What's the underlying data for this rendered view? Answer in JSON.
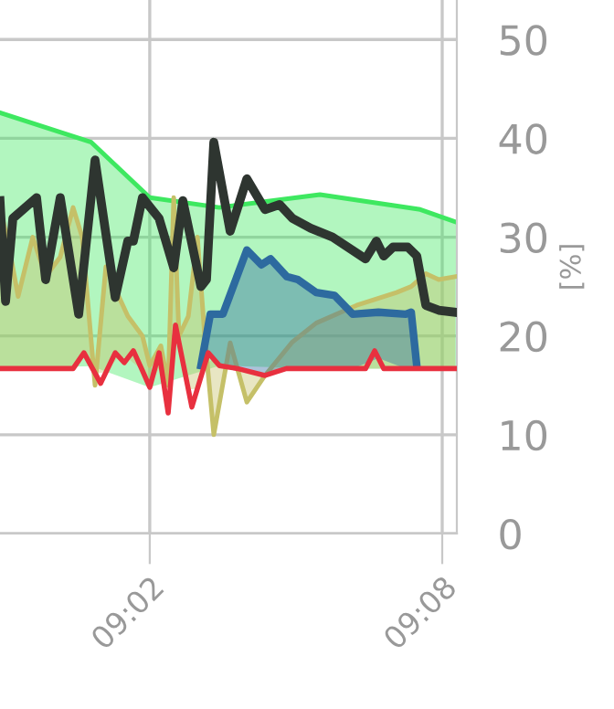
{
  "chart_data": {
    "type": "line",
    "ylabel": "[%]",
    "xlim": [
      8.9821,
      9.1383
    ],
    "xticks": [
      {
        "value": 9.0333,
        "label": "09:02"
      },
      {
        "value": 9.1333,
        "label": "09:08"
      }
    ],
    "ylim": [
      0,
      54
    ],
    "yticks": [
      0,
      10,
      20,
      30,
      40,
      50
    ],
    "grid": true,
    "legend": false,
    "marker": "none",
    "line_style": "solid",
    "series": [
      {
        "type": "area",
        "color": "#3ee860",
        "x": [
          8.9821,
          9.0133,
          9.0333,
          9.0571,
          9.0915,
          9.1258,
          9.1383
        ],
        "values": [
          42.6,
          39.6,
          34,
          33,
          34.3,
          32.8,
          31.5
        ]
      },
      {
        "type": "area",
        "color": "#c5c068",
        "x": [
          8.9821,
          8.9852,
          8.9883,
          8.9933,
          8.9977,
          9.0027,
          9.0071,
          9.0102,
          9.0146,
          9.0183,
          9.0227,
          9.0258,
          9.0308,
          9.0333,
          9.0371,
          9.0396,
          9.0415,
          9.0433,
          9.0465,
          9.0496,
          9.0521,
          9.0552,
          9.0608,
          9.0665,
          9.0727,
          9.0821,
          9.0902,
          9.104,
          9.1177,
          9.1227,
          9.1277,
          9.1321,
          9.1377
        ],
        "values": [
          33,
          29,
          24,
          30,
          26,
          28,
          33,
          30,
          15,
          27,
          24,
          22,
          20,
          17,
          19,
          15,
          34,
          20,
          22,
          30,
          20,
          10,
          19.3,
          13.3,
          16,
          19.4,
          21.3,
          23.1,
          24.4,
          25,
          26.3,
          25.7,
          26
        ]
      },
      {
        "type": "area",
        "color": "#2d6a9f",
        "x": [
          9.0508,
          9.054,
          9.0583,
          9.0665,
          9.0715,
          9.0746,
          9.0802,
          9.084,
          9.0902,
          9.0965,
          9.1027,
          9.1115,
          9.1208,
          9.1227,
          9.1246
        ],
        "values": [
          17,
          22.2,
          22.2,
          28.7,
          27.2,
          27.8,
          26,
          25.7,
          24.4,
          24.1,
          22.2,
          22.4,
          22.2,
          22.4,
          17
        ]
      },
      {
        "color": "#2e3530",
        "x": [
          8.9821,
          8.984,
          8.9865,
          8.9946,
          8.9977,
          9.0027,
          9.009,
          9.0146,
          9.0215,
          9.0258,
          9.0277,
          9.0308,
          9.0365,
          9.0415,
          9.0446,
          9.0508,
          9.0527,
          9.0552,
          9.0608,
          9.0665,
          9.0727,
          9.0777,
          9.0821,
          9.0883,
          9.0958,
          9.1071,
          9.1108,
          9.1133,
          9.1165,
          9.1215,
          9.1246,
          9.1277,
          9.1321,
          9.1377
        ],
        "values": [
          33.7,
          23.5,
          31.9,
          34,
          25.7,
          34,
          22.2,
          37.8,
          23.9,
          29.6,
          29.6,
          34,
          31.9,
          26.9,
          33.7,
          25,
          25.7,
          39.6,
          30.6,
          35.9,
          32.8,
          33.3,
          31.9,
          30.9,
          30,
          27.8,
          29.6,
          28.1,
          29,
          29,
          28.1,
          23.1,
          22.6,
          22.4
        ]
      },
      {
        "type": "line",
        "color": "#e8303f",
        "x": [
          8.9821,
          9.0071,
          9.0108,
          9.0165,
          9.0215,
          9.0246,
          9.0277,
          9.0308,
          9.0333,
          9.0365,
          9.0396,
          9.0421,
          9.0477,
          9.0533,
          9.0571,
          9.0633,
          9.0727,
          9.08,
          9.1071,
          9.1102,
          9.1133,
          9.12,
          9.1383
        ],
        "values": [
          16.7,
          16.7,
          18.3,
          15.2,
          18.3,
          17.3,
          18.5,
          16.5,
          14.8,
          18.3,
          12.2,
          21.1,
          12.8,
          18.3,
          17,
          16.7,
          16,
          16.7,
          16.7,
          18.5,
          16.7,
          16.7,
          16.7
        ]
      }
    ]
  }
}
